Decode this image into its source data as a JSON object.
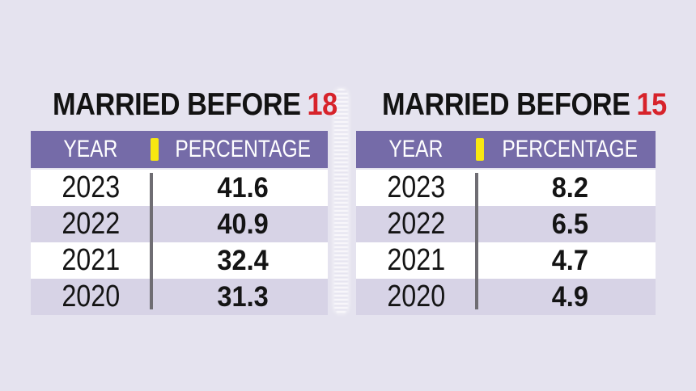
{
  "colors": {
    "page_bg": "#e5e3ef",
    "header_bg": "#756ba8",
    "row_alt_bg": "#d7d3e6",
    "row_bg": "#ffffff",
    "title_text": "#131313",
    "title_accent_red": "#d7232b",
    "header_text": "#ffffff",
    "yellow_separator": "#f8e711",
    "gray_rule": "#6f6d73",
    "value_text": "#141414"
  },
  "tables": [
    {
      "title_prefix": "MARRIED BEFORE",
      "title_accent": "18",
      "columns": [
        "YEAR",
        "PERCENTAGE"
      ],
      "rows": [
        {
          "year": "2023",
          "percentage": "41.6"
        },
        {
          "year": "2022",
          "percentage": "40.9"
        },
        {
          "year": "2021",
          "percentage": "32.4"
        },
        {
          "year": "2020",
          "percentage": "31.3"
        }
      ]
    },
    {
      "title_prefix": "MARRIED BEFORE",
      "title_accent": "15",
      "columns": [
        "YEAR",
        "PERCENTAGE"
      ],
      "rows": [
        {
          "year": "2023",
          "percentage": "8.2"
        },
        {
          "year": "2022",
          "percentage": "6.5"
        },
        {
          "year": "2021",
          "percentage": "4.7"
        },
        {
          "year": "2020",
          "percentage": "4.9"
        }
      ]
    }
  ],
  "chart_data": [
    {
      "type": "table",
      "title": "MARRIED BEFORE 18",
      "columns": [
        "YEAR",
        "PERCENTAGE"
      ],
      "rows": [
        [
          "2023",
          41.6
        ],
        [
          "2022",
          40.9
        ],
        [
          "2021",
          32.4
        ],
        [
          "2020",
          31.3
        ]
      ]
    },
    {
      "type": "table",
      "title": "MARRIED BEFORE 15",
      "columns": [
        "YEAR",
        "PERCENTAGE"
      ],
      "rows": [
        [
          "2023",
          8.2
        ],
        [
          "2022",
          6.5
        ],
        [
          "2021",
          4.7
        ],
        [
          "2020",
          4.9
        ]
      ]
    }
  ]
}
